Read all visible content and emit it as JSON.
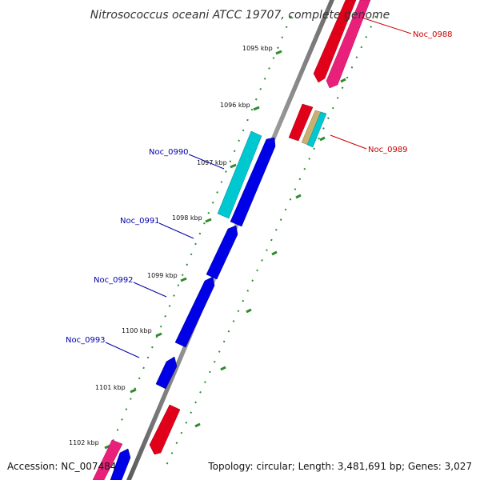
{
  "title": "Nitrosococcus oceani ATCC 19707, complete genome",
  "footer": {
    "accession": "Accession: NC_007484",
    "summary": "Topology: circular; Length: 3,481,691 bp; Genes: 3,027"
  },
  "colors": {
    "backbone": "#8c8c8c",
    "forward_gene": "#e0001a",
    "reverse_gene": "#0000e6",
    "pink_gene": "#e8207a",
    "cyan_gene": "#00c8d0",
    "tan_gene": "#c8b070",
    "tick": "#2e8b2e",
    "right_label": "#cc0000",
    "left_label": "#0000aa"
  },
  "ticks": [
    {
      "label": "1095 kbp"
    },
    {
      "label": "1096 kbp"
    },
    {
      "label": "1097 kbp"
    },
    {
      "label": "1098 kbp"
    },
    {
      "label": "1099 kbp"
    },
    {
      "label": "1100 kbp"
    },
    {
      "label": "1101 kbp"
    },
    {
      "label": "1102 kbp"
    }
  ],
  "genes": {
    "right": [
      {
        "label": "Noc_0988"
      },
      {
        "label": "Noc_0989"
      }
    ],
    "left": [
      {
        "label": "Noc_0990"
      },
      {
        "label": "Noc_0991"
      },
      {
        "label": "Noc_0992"
      },
      {
        "label": "Noc_0993"
      }
    ]
  }
}
